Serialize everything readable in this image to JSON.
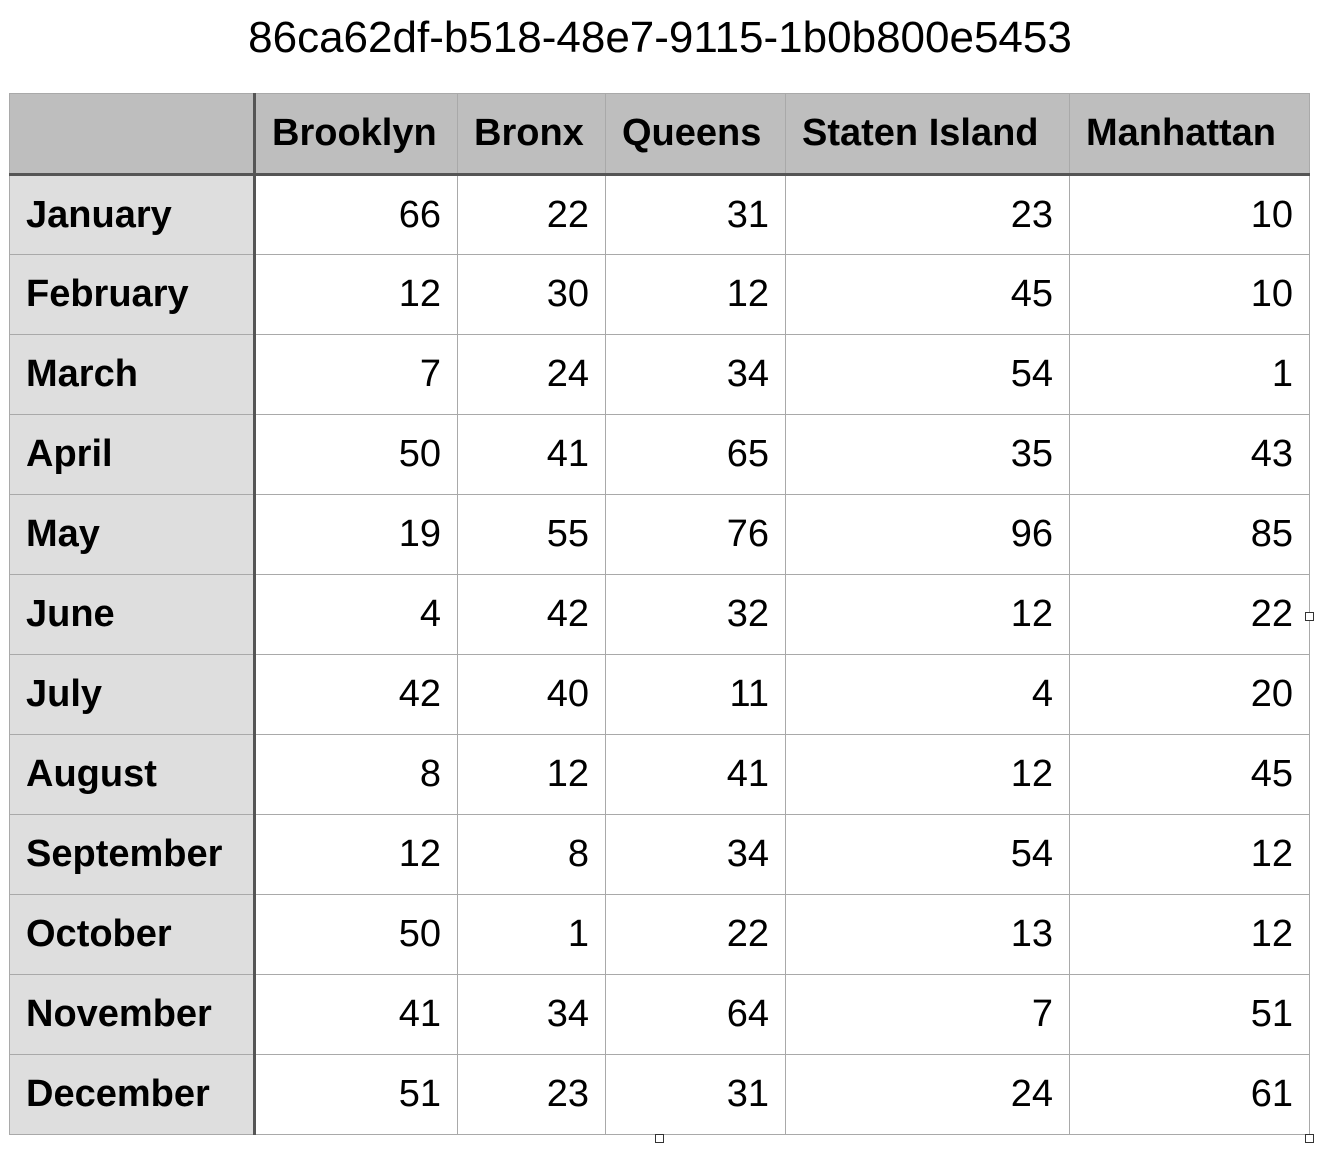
{
  "title": "86ca62df-b518-48e7-9115-1b0b800e5453",
  "table": {
    "columns": [
      "Brooklyn",
      "Bronx",
      "Queens",
      "Staten Island",
      "Manhattan"
    ],
    "rows": [
      {
        "label": "January",
        "values": [
          "66",
          "22",
          "31",
          "23",
          "10"
        ]
      },
      {
        "label": "February",
        "values": [
          "12",
          "30",
          "12",
          "45",
          "10"
        ]
      },
      {
        "label": "March",
        "values": [
          "7",
          "24",
          "34",
          "54",
          "1"
        ]
      },
      {
        "label": "April",
        "values": [
          "50",
          "41",
          "65",
          "35",
          "43"
        ]
      },
      {
        "label": "May",
        "values": [
          "19",
          "55",
          "76",
          "96",
          "85"
        ]
      },
      {
        "label": "June",
        "values": [
          "4",
          "42",
          "32",
          "12",
          "22"
        ]
      },
      {
        "label": "July",
        "values": [
          "42",
          "40",
          "11",
          "4",
          "20"
        ]
      },
      {
        "label": "August",
        "values": [
          "8",
          "12",
          "41",
          "12",
          "45"
        ]
      },
      {
        "label": "September",
        "values": [
          "12",
          "8",
          "34",
          "54",
          "12"
        ]
      },
      {
        "label": "October",
        "values": [
          "50",
          "1",
          "22",
          "13",
          "12"
        ]
      },
      {
        "label": "November",
        "values": [
          "41",
          "34",
          "64",
          "7",
          "51"
        ]
      },
      {
        "label": "December",
        "values": [
          "51",
          "23",
          "31",
          "24",
          "61"
        ]
      }
    ]
  }
}
